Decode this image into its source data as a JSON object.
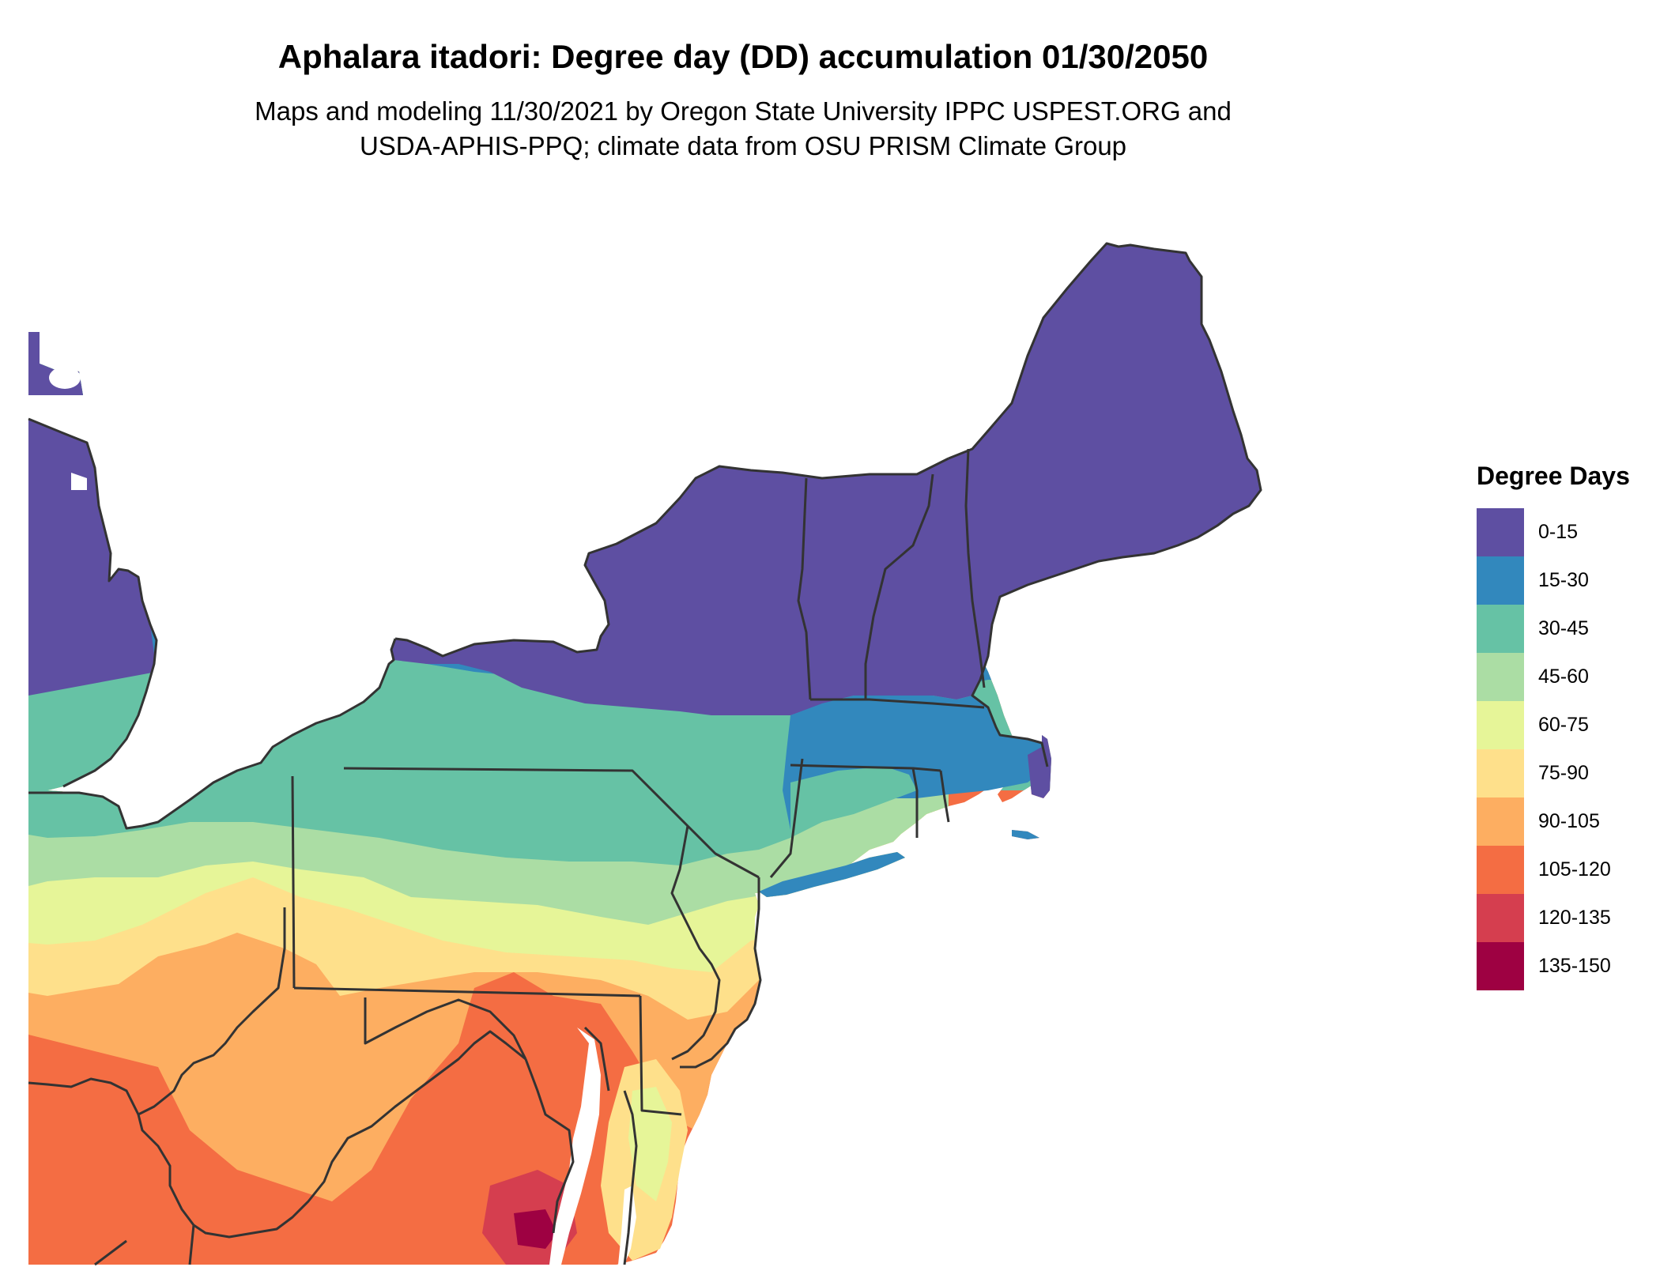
{
  "title": "Aphalara itadori: Degree day (DD) accumulation 01/30/2050",
  "subtitle_line1": "Maps and modeling 11/30/2021 by Oregon State University IPPC USPEST.ORG and",
  "subtitle_line2": "USDA-APHIS-PPQ; climate data from OSU PRISM Climate Group",
  "legend": {
    "title": "Degree Days",
    "items": [
      {
        "label": "0-15",
        "color": "#5e4fa2"
      },
      {
        "label": "15-30",
        "color": "#3288bd"
      },
      {
        "label": "30-45",
        "color": "#66c2a5"
      },
      {
        "label": "45-60",
        "color": "#abdda4"
      },
      {
        "label": "60-75",
        "color": "#e6f598"
      },
      {
        "label": "75-90",
        "color": "#fee08b"
      },
      {
        "label": "90-105",
        "color": "#fdae61"
      },
      {
        "label": "105-120",
        "color": "#f46d43"
      },
      {
        "label": "120-135",
        "color": "#d53e4f"
      },
      {
        "label": "135-150",
        "color": "#9e0142"
      }
    ]
  }
}
